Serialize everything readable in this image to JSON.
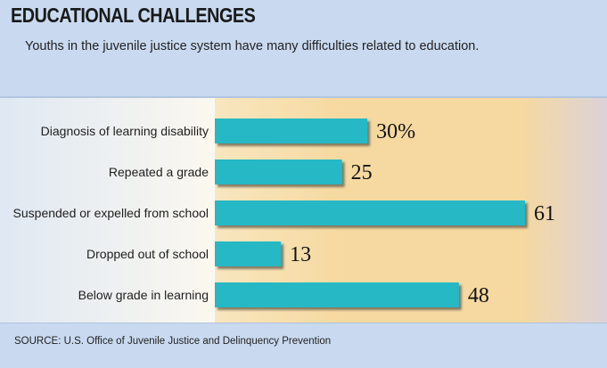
{
  "chart_data": {
    "type": "bar",
    "orientation": "horizontal",
    "title": "EDUCATIONAL CHALLENGES",
    "subtitle": "Youths in the juvenile justice system have many difficulties related to education.",
    "source": "SOURCE: U.S. Office of Juvenile Justice and Delinquency Prevention",
    "categories": [
      "Diagnosis of learning disability",
      "Repeated a grade",
      "Suspended or expelled from school",
      "Dropped out of school",
      "Below grade in learning"
    ],
    "values": [
      30,
      25,
      61,
      13,
      48
    ],
    "value_labels": [
      "30%",
      "25",
      "61",
      "13",
      "48"
    ],
    "unit": "%",
    "xlim": [
      0,
      61
    ],
    "xlabel": "",
    "ylabel": "",
    "grid": false
  },
  "colors": {
    "bar": "#26b8c4",
    "bar_shadow": "#6f6a58",
    "panel_light": "#fbf8ef",
    "panel_warm": "#f6d9a0",
    "panel_edge": "#dcd2d8",
    "background": "#c9daf0"
  }
}
